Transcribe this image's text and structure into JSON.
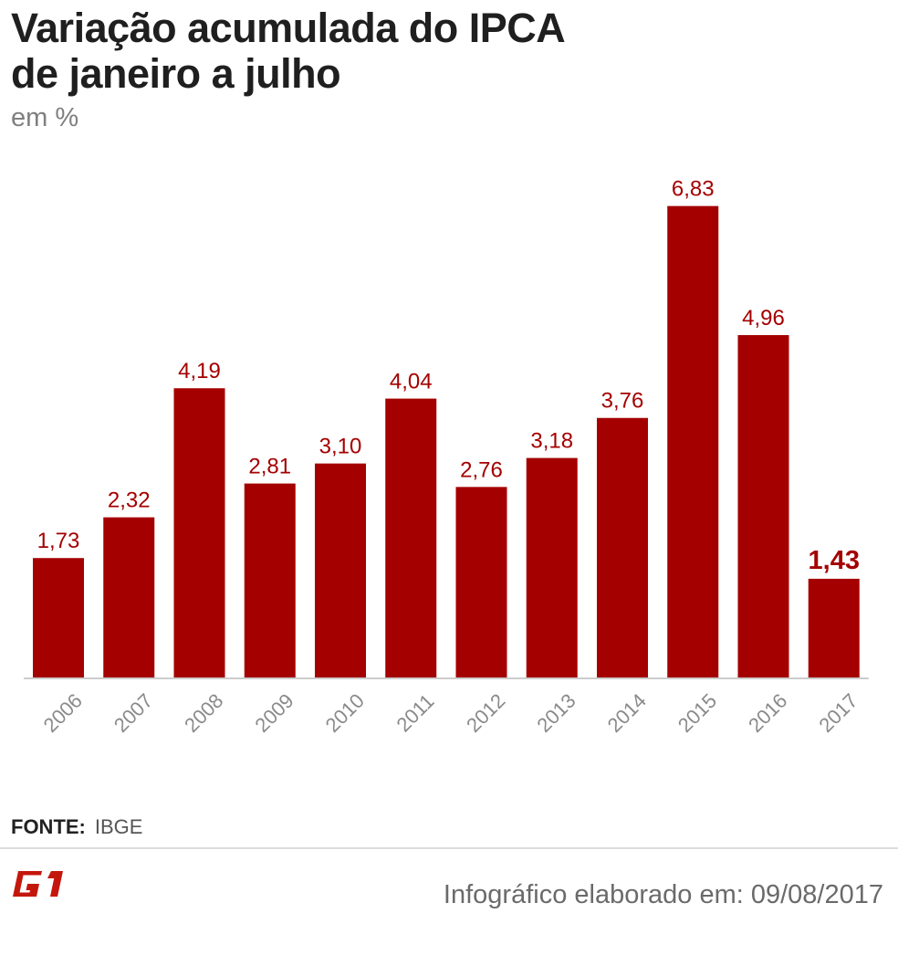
{
  "header": {
    "title_line1": "Variação acumulada do IPCA",
    "title_line2": "de janeiro a julho",
    "unit": "em %"
  },
  "chart_data": {
    "type": "bar",
    "categories": [
      "2006",
      "2007",
      "2008",
      "2009",
      "2010",
      "2011",
      "2012",
      "2013",
      "2014",
      "2015",
      "2016",
      "2017"
    ],
    "values": [
      1.73,
      2.32,
      4.19,
      2.81,
      3.1,
      4.04,
      2.76,
      3.18,
      3.76,
      6.83,
      4.96,
      1.43
    ],
    "value_labels": [
      "1,73",
      "2,32",
      "4,19",
      "2,81",
      "3,10",
      "4,04",
      "2,76",
      "3,18",
      "3,76",
      "6,83",
      "4,96",
      "1,43"
    ],
    "highlight_index": 11,
    "title": "Variação acumulada do IPCA de janeiro a julho",
    "ylabel": "em %",
    "ylim": [
      0,
      7.5
    ],
    "grid": false,
    "bar_color": "#a40000",
    "label_color": "#a40000"
  },
  "footer": {
    "source_label": "FONTE:",
    "source_value": "IBGE",
    "logo_text": "G1",
    "credit": "Infográfico elaborado em: 09/08/2017"
  },
  "colors": {
    "brand": "#c4170c",
    "title": "#1f1f1f",
    "muted": "#7f7f7f"
  }
}
